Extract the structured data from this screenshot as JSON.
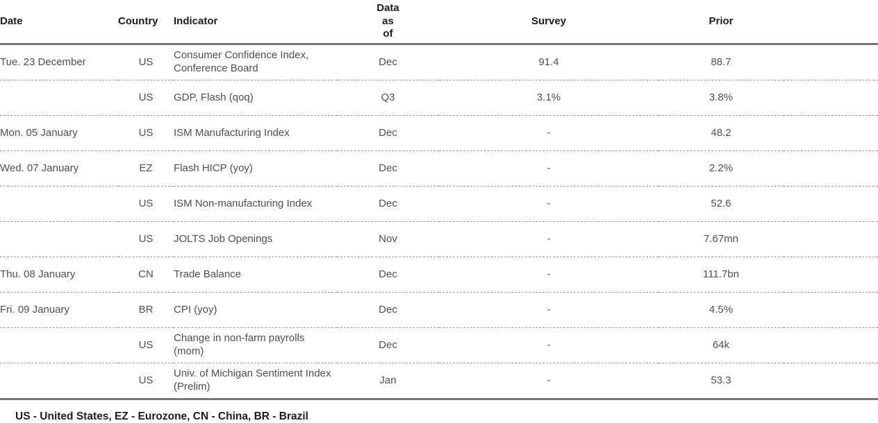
{
  "colors": {
    "heavy_rule": "#757575",
    "row_divider": "#9a9a9a",
    "header_text": "#1c1c1c",
    "body_text": "#4f4f4f",
    "background": "#ffffff"
  },
  "chart_data": {
    "type": "table",
    "title": "",
    "columns": [
      {
        "id": "date",
        "label": "Date"
      },
      {
        "id": "country",
        "label": "Country"
      },
      {
        "id": "indicator",
        "label": "Indicator"
      },
      {
        "id": "data_as_of",
        "label": "Data\nas\nof"
      },
      {
        "id": "survey",
        "label": "Survey"
      },
      {
        "id": "prior",
        "label": "Prior"
      }
    ],
    "rows": [
      {
        "date": "Tue. 23 December",
        "country": "US",
        "indicator": "Consumer Confidence Index, Conference Board",
        "data_as_of": "Dec",
        "survey": "91.4",
        "prior": "88.7"
      },
      {
        "date": "",
        "country": "US",
        "indicator": "GDP, Flash (qoq)",
        "data_as_of": "Q3",
        "survey": "3.1%",
        "prior": "3.8%"
      },
      {
        "date": "Mon. 05 January",
        "country": "US",
        "indicator": "ISM Manufacturing Index",
        "data_as_of": "Dec",
        "survey": "-",
        "prior": "48.2"
      },
      {
        "date": "Wed. 07 January",
        "country": "EZ",
        "indicator": "Flash HICP (yoy)",
        "data_as_of": "Dec",
        "survey": "-",
        "prior": "2.2%"
      },
      {
        "date": "",
        "country": "US",
        "indicator": "ISM Non-manufacturing Index",
        "data_as_of": "Dec",
        "survey": "-",
        "prior": "52.6"
      },
      {
        "date": "",
        "country": "US",
        "indicator": "JOLTS Job Openings",
        "data_as_of": "Nov",
        "survey": "-",
        "prior": "7.67mn"
      },
      {
        "date": "Thu. 08 January",
        "country": "CN",
        "indicator": "Trade Balance",
        "data_as_of": "Dec",
        "survey": "-",
        "prior": "111.7bn"
      },
      {
        "date": "Fri. 09 January",
        "country": "BR",
        "indicator": "CPI (yoy)",
        "data_as_of": "Dec",
        "survey": "-",
        "prior": "4.5%"
      },
      {
        "date": "",
        "country": "US",
        "indicator": "Change in non-farm payrolls (mom)",
        "data_as_of": "Dec",
        "survey": "-",
        "prior": "64k"
      },
      {
        "date": "",
        "country": "US",
        "indicator": "Univ. of Michigan Sentiment Index (Prelim)",
        "data_as_of": "Jan",
        "survey": "-",
        "prior": "53.3"
      }
    ],
    "footnote": "US - United States, EZ - Eurozone, CN - China, BR - Brazil"
  }
}
